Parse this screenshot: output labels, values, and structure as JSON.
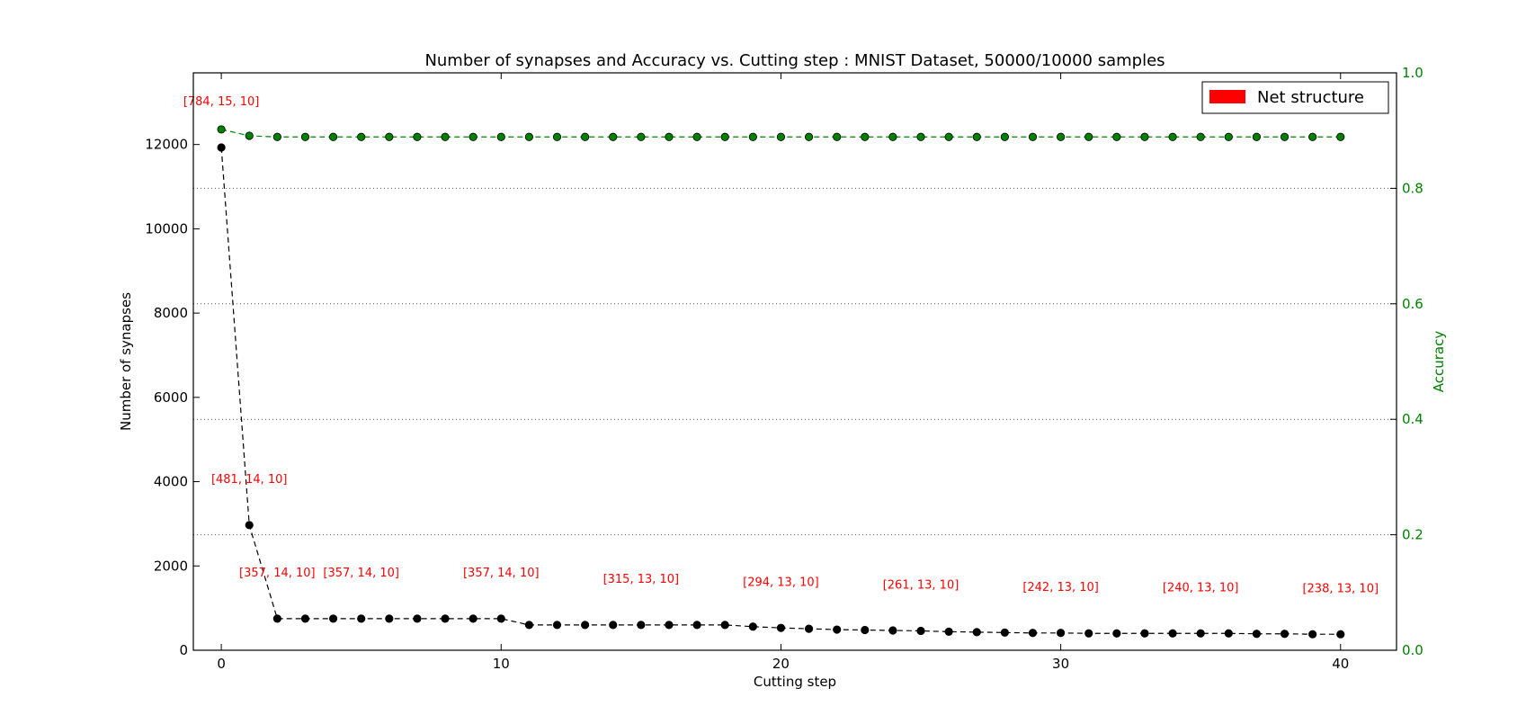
{
  "chart_data": {
    "type": "line",
    "title": "Number of synapses and Accuracy vs. Cutting step : MNIST Dataset, 50000/10000 samples",
    "xlabel": "Cutting step",
    "ylabel": "Number of synapses",
    "ylabel_right": "Accuracy",
    "xlim": [
      -1,
      42
    ],
    "ylim": [
      0,
      13700
    ],
    "ylim_right": [
      0,
      1.0
    ],
    "x_ticks": [
      0,
      10,
      20,
      30,
      40
    ],
    "y_ticks": [
      0,
      2000,
      4000,
      6000,
      8000,
      10000,
      12000
    ],
    "y_ticks_right": [
      0.0,
      0.2,
      0.4,
      0.6,
      0.8,
      1.0
    ],
    "y_tick_labels_right": [
      "0.0",
      "0.2",
      "0.4",
      "0.6",
      "0.8",
      "1.0"
    ],
    "grid": "horizontal dotted at right-axis ticks",
    "legend": {
      "placement": "top-right",
      "label": "Net structure",
      "color": "#ff0000"
    },
    "x": [
      0,
      1,
      2,
      3,
      4,
      5,
      6,
      7,
      8,
      9,
      10,
      11,
      12,
      13,
      14,
      15,
      16,
      17,
      18,
      19,
      20,
      21,
      22,
      23,
      24,
      25,
      26,
      27,
      28,
      29,
      30,
      31,
      32,
      33,
      34,
      35,
      36,
      37,
      38,
      39,
      40
    ],
    "series": [
      {
        "axis": "left",
        "color": "#000000",
        "values": [
          11930,
          2970,
          750,
          750,
          750,
          750,
          750,
          750,
          750,
          750,
          750,
          600,
          600,
          600,
          600,
          600,
          600,
          600,
          600,
          560,
          530,
          510,
          490,
          480,
          470,
          460,
          440,
          430,
          420,
          410,
          410,
          400,
          400,
          400,
          400,
          400,
          400,
          390,
          390,
          380,
          380
        ]
      },
      {
        "axis": "right",
        "color": "#008000",
        "values": [
          0.902,
          0.891,
          0.889,
          0.889,
          0.889,
          0.889,
          0.889,
          0.889,
          0.889,
          0.889,
          0.889,
          0.889,
          0.889,
          0.889,
          0.889,
          0.889,
          0.889,
          0.889,
          0.889,
          0.889,
          0.889,
          0.889,
          0.889,
          0.889,
          0.889,
          0.889,
          0.889,
          0.889,
          0.889,
          0.889,
          0.889,
          0.889,
          0.889,
          0.889,
          0.889,
          0.889,
          0.889,
          0.889,
          0.889,
          0.889,
          0.889
        ]
      }
    ],
    "annotations": [
      {
        "x": 0,
        "y": 12930,
        "text": "[784, 15, 10]"
      },
      {
        "x": 1,
        "y": 3970,
        "text": "[481, 14, 10]"
      },
      {
        "x": 2,
        "y": 1750,
        "text": "[357, 14, 10]"
      },
      {
        "x": 5,
        "y": 1750,
        "text": "[357, 14, 10]"
      },
      {
        "x": 10,
        "y": 1750,
        "text": "[357, 14, 10]"
      },
      {
        "x": 15,
        "y": 1600,
        "text": "[315, 13, 10]"
      },
      {
        "x": 20,
        "y": 1530,
        "text": "[294, 13, 10]"
      },
      {
        "x": 25,
        "y": 1460,
        "text": "[261, 13, 10]"
      },
      {
        "x": 30,
        "y": 1410,
        "text": "[242, 13, 10]"
      },
      {
        "x": 35,
        "y": 1400,
        "text": "[240, 13, 10]"
      },
      {
        "x": 40,
        "y": 1380,
        "text": "[238, 13, 10]"
      }
    ]
  }
}
